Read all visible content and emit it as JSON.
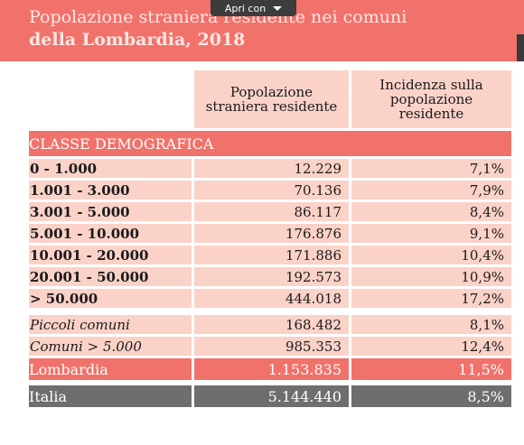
{
  "title": {
    "line1": "Popolazione straniera residente nei comuni",
    "line2": "della Lombardia, 2018"
  },
  "toolbar": {
    "open_with_label": "Apri con"
  },
  "colors": {
    "accent": "#f1726b",
    "light": "#fbd2c8",
    "grey": "#6e6e6e"
  },
  "table": {
    "headers": [
      "Popolazione straniera residente",
      "Incidenza sulla popolazione residente"
    ],
    "category_label": "CLASSE DEMOGRAFICA",
    "rows": [
      {
        "label": "0 - 1.000",
        "pop": "12.229",
        "inc": "7,1%"
      },
      {
        "label": "1.001 - 3.000",
        "pop": "70.136",
        "inc": "7,9%"
      },
      {
        "label": "3.001 - 5.000",
        "pop": "86.117",
        "inc": "8,4%"
      },
      {
        "label": "5.001 - 10.000",
        "pop": "176.876",
        "inc": "9,1%"
      },
      {
        "label": "10.001 - 20.000",
        "pop": "171.886",
        "inc": "10,4%"
      },
      {
        "label": "20.001 - 50.000",
        "pop": "192.573",
        "inc": "10,9%"
      },
      {
        "label": "> 50.000",
        "pop": "444.018",
        "inc": "17,2%"
      }
    ],
    "summary": [
      {
        "label": "Piccoli comuni",
        "pop": "168.482",
        "inc": "8,1%"
      },
      {
        "label": "Comuni > 5.000",
        "pop": "985.353",
        "inc": "12,4%"
      }
    ],
    "lombardia": {
      "label": "Lombardia",
      "pop": "1.153.835",
      "inc": "11,5%"
    },
    "italia": {
      "label": "Italia",
      "pop": "5.144.440",
      "inc": "8,5%"
    }
  }
}
